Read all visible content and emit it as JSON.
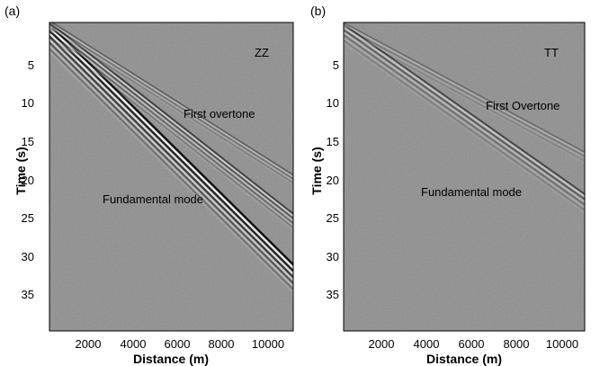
{
  "figure": {
    "panels": [
      {
        "label": "(a)",
        "component": "ZZ",
        "ylabel": "Time (s)",
        "xlabel": "Distance (m)",
        "x_ticks": [
          "2000",
          "4000",
          "6000",
          "8000",
          "10000"
        ],
        "y_ticks": [
          "5",
          "10",
          "15",
          "20",
          "25",
          "30",
          "35"
        ],
        "annotations": [
          "First overtone",
          "Fundamental mode"
        ]
      },
      {
        "label": "(b)",
        "component": "TT",
        "ylabel": "Time (s)",
        "xlabel": "Distance (m)",
        "x_ticks": [
          "2000",
          "4000",
          "6000",
          "8000",
          "10000"
        ],
        "y_ticks": [
          "5",
          "10",
          "15",
          "20",
          "25",
          "30",
          "35"
        ],
        "annotations": [
          "First Overtone",
          "Fundamental mode"
        ]
      }
    ]
  },
  "chart_data": [
    {
      "type": "heatmap",
      "title": "",
      "component": "ZZ",
      "xlabel": "Distance (m)",
      "ylabel": "Time (s)",
      "xlim": [
        0,
        11000
      ],
      "ylim": [
        0,
        40
      ],
      "y_inverted": true,
      "xticks": [
        2000,
        4000,
        6000,
        8000,
        10000
      ],
      "yticks": [
        5,
        10,
        15,
        20,
        25,
        30,
        35
      ],
      "colormap": "grayscale",
      "grid": false,
      "annotations": [
        {
          "text": "First overtone",
          "x": 7000,
          "y": 11
        },
        {
          "text": "Fundamental mode",
          "x": 5000,
          "y": 22.5
        }
      ]
    },
    {
      "type": "heatmap",
      "title": "",
      "component": "TT",
      "xlabel": "Distance (m)",
      "ylabel": "Time (s)",
      "xlim": [
        0,
        11000
      ],
      "ylim": [
        0,
        40
      ],
      "y_inverted": true,
      "xticks": [
        2000,
        4000,
        6000,
        8000,
        10000
      ],
      "yticks": [
        5,
        10,
        15,
        20,
        25,
        30,
        35
      ],
      "colormap": "grayscale",
      "grid": false,
      "annotations": [
        {
          "text": "First Overtone",
          "x": 7800,
          "y": 10.5
        },
        {
          "text": "Fundamental mode",
          "x": 5000,
          "y": 21.5
        }
      ]
    }
  ]
}
